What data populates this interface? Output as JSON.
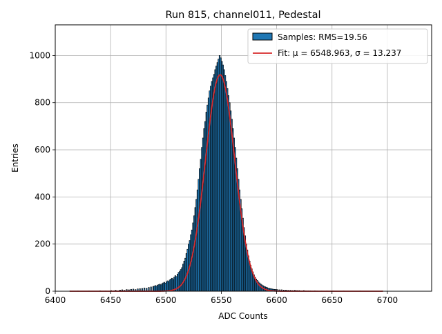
{
  "chart_data": {
    "type": "bar",
    "title": "Run 815, channel011, Pedestal",
    "xlabel": "ADC Counts",
    "ylabel": "Entries",
    "xlim": [
      6400,
      6740
    ],
    "ylim": [
      0,
      1130
    ],
    "xticks": [
      6400,
      6450,
      6500,
      6550,
      6600,
      6650,
      6700
    ],
    "yticks": [
      0,
      200,
      400,
      600,
      800,
      1000
    ],
    "grid": true,
    "legend_position": "top-right",
    "bin_width": 1,
    "series": [
      {
        "name": "Samples: RMS=19.56",
        "kind": "histogram",
        "color": "#1f77b4",
        "edgecolor": "#000000",
        "bins": [
          [
            6413,
            1
          ],
          [
            6420,
            1
          ],
          [
            6430,
            1
          ],
          [
            6440,
            2
          ],
          [
            6445,
            1
          ],
          [
            6450,
            3
          ],
          [
            6452,
            2
          ],
          [
            6454,
            4
          ],
          [
            6456,
            2
          ],
          [
            6458,
            5
          ],
          [
            6460,
            6
          ],
          [
            6462,
            4
          ],
          [
            6464,
            7
          ],
          [
            6466,
            6
          ],
          [
            6468,
            8
          ],
          [
            6470,
            9
          ],
          [
            6472,
            7
          ],
          [
            6474,
            10
          ],
          [
            6476,
            11
          ],
          [
            6478,
            12
          ],
          [
            6480,
            14
          ],
          [
            6482,
            13
          ],
          [
            6484,
            16
          ],
          [
            6486,
            18
          ],
          [
            6488,
            20
          ],
          [
            6489,
            22
          ],
          [
            6490,
            24
          ],
          [
            6491,
            21
          ],
          [
            6492,
            26
          ],
          [
            6493,
            28
          ],
          [
            6494,
            30
          ],
          [
            6495,
            27
          ],
          [
            6496,
            32
          ],
          [
            6497,
            35
          ],
          [
            6498,
            38
          ],
          [
            6499,
            34
          ],
          [
            6500,
            40
          ],
          [
            6501,
            44
          ],
          [
            6502,
            41
          ],
          [
            6503,
            48
          ],
          [
            6504,
            52
          ],
          [
            6505,
            55
          ],
          [
            6506,
            50
          ],
          [
            6507,
            60
          ],
          [
            6508,
            66
          ],
          [
            6509,
            62
          ],
          [
            6510,
            72
          ],
          [
            6511,
            80
          ],
          [
            6512,
            85
          ],
          [
            6513,
            92
          ],
          [
            6514,
            100
          ],
          [
            6515,
            115
          ],
          [
            6516,
            128
          ],
          [
            6517,
            140
          ],
          [
            6518,
            160
          ],
          [
            6519,
            178
          ],
          [
            6520,
            200
          ],
          [
            6521,
            215
          ],
          [
            6522,
            240
          ],
          [
            6523,
            260
          ],
          [
            6524,
            290
          ],
          [
            6525,
            320
          ],
          [
            6526,
            355
          ],
          [
            6527,
            390
          ],
          [
            6528,
            430
          ],
          [
            6529,
            475
          ],
          [
            6530,
            520
          ],
          [
            6531,
            560
          ],
          [
            6532,
            610
          ],
          [
            6533,
            650
          ],
          [
            6534,
            690
          ],
          [
            6535,
            720
          ],
          [
            6536,
            760
          ],
          [
            6537,
            790
          ],
          [
            6538,
            820
          ],
          [
            6539,
            850
          ],
          [
            6540,
            870
          ],
          [
            6541,
            890
          ],
          [
            6542,
            905
          ],
          [
            6543,
            920
          ],
          [
            6544,
            940
          ],
          [
            6545,
            955
          ],
          [
            6546,
            970
          ],
          [
            6547,
            985
          ],
          [
            6548,
            1000
          ],
          [
            6549,
            990
          ],
          [
            6550,
            975
          ],
          [
            6551,
            960
          ],
          [
            6552,
            940
          ],
          [
            6553,
            915
          ],
          [
            6554,
            890
          ],
          [
            6555,
            860
          ],
          [
            6556,
            830
          ],
          [
            6557,
            800
          ],
          [
            6558,
            765
          ],
          [
            6559,
            730
          ],
          [
            6560,
            690
          ],
          [
            6561,
            650
          ],
          [
            6562,
            610
          ],
          [
            6563,
            565
          ],
          [
            6564,
            520
          ],
          [
            6565,
            475
          ],
          [
            6566,
            430
          ],
          [
            6567,
            390
          ],
          [
            6568,
            350
          ],
          [
            6569,
            310
          ],
          [
            6570,
            270
          ],
          [
            6571,
            235
          ],
          [
            6572,
            200
          ],
          [
            6573,
            175
          ],
          [
            6574,
            150
          ],
          [
            6575,
            128
          ],
          [
            6576,
            110
          ],
          [
            6577,
            95
          ],
          [
            6578,
            82
          ],
          [
            6579,
            70
          ],
          [
            6580,
            60
          ],
          [
            6581,
            52
          ],
          [
            6582,
            46
          ],
          [
            6583,
            40
          ],
          [
            6584,
            35
          ],
          [
            6585,
            31
          ],
          [
            6586,
            27
          ],
          [
            6587,
            24
          ],
          [
            6588,
            21
          ],
          [
            6589,
            19
          ],
          [
            6590,
            17
          ],
          [
            6591,
            15
          ],
          [
            6592,
            13
          ],
          [
            6593,
            12
          ],
          [
            6594,
            11
          ],
          [
            6595,
            10
          ],
          [
            6596,
            9
          ],
          [
            6597,
            8
          ],
          [
            6598,
            8
          ],
          [
            6599,
            7
          ],
          [
            6600,
            7
          ],
          [
            6602,
            6
          ],
          [
            6604,
            6
          ],
          [
            6606,
            5
          ],
          [
            6608,
            5
          ],
          [
            6610,
            4
          ],
          [
            6612,
            4
          ],
          [
            6614,
            3
          ],
          [
            6616,
            4
          ],
          [
            6618,
            3
          ],
          [
            6620,
            3
          ],
          [
            6622,
            2
          ],
          [
            6624,
            3
          ],
          [
            6626,
            2
          ],
          [
            6628,
            2
          ],
          [
            6630,
            2
          ],
          [
            6632,
            1
          ],
          [
            6634,
            2
          ],
          [
            6636,
            1
          ],
          [
            6640,
            1
          ],
          [
            6645,
            1
          ],
          [
            6650,
            1
          ],
          [
            6660,
            1
          ],
          [
            6675,
            1
          ],
          [
            6695,
            1
          ]
        ]
      },
      {
        "name": "Fit: μ = 6548.963, σ = 13.237",
        "kind": "gaussian",
        "color": "#d62728",
        "mu": 6548.963,
        "sigma": 13.237,
        "amplitude": 918,
        "x_range": [
          6413,
          6696
        ]
      }
    ]
  }
}
